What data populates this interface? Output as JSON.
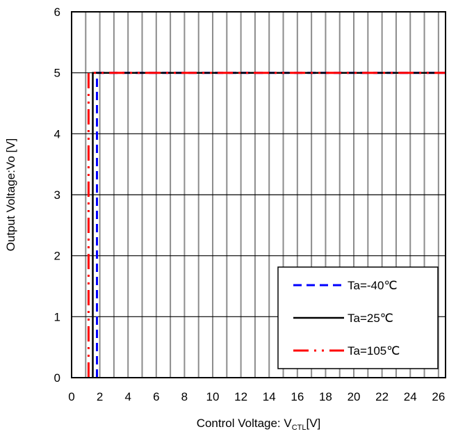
{
  "chart_data": {
    "type": "line",
    "xlabel_main": "Control Voltage: V",
    "xlabel_sub": "CTL",
    "xlabel_end": "[V]",
    "ylabel": "Output Voltage:Vo  [V]",
    "xlim": [
      0,
      26.5
    ],
    "ylim": [
      0,
      6
    ],
    "x_ticks": [
      "0",
      "2",
      "4",
      "6",
      "8",
      "10",
      "12",
      "14",
      "16",
      "18",
      "20",
      "22",
      "24",
      "26"
    ],
    "y_ticks": [
      "0",
      "1",
      "2",
      "3",
      "4",
      "5",
      "6"
    ],
    "x_grid_step": 1,
    "y_grid_step": 1,
    "grid": true,
    "legend_position": "bottom-right",
    "series": [
      {
        "name": "Ta=-40℃",
        "color": "#0000ff",
        "dash": "dashed",
        "x": [
          1.8,
          1.8,
          1.8,
          26.5
        ],
        "y": [
          0,
          0,
          5,
          5
        ]
      },
      {
        "name": "Ta=25℃",
        "color": "#000000",
        "dash": "solid",
        "x": [
          1.5,
          1.5,
          1.5,
          26.5
        ],
        "y": [
          0,
          0,
          5,
          5
        ]
      },
      {
        "name": "Ta=105℃",
        "color": "#ff0000",
        "dash": "dash-dot-dot",
        "x": [
          1.2,
          1.2,
          1.2,
          26.5
        ],
        "y": [
          0,
          0,
          5,
          5
        ]
      }
    ]
  }
}
